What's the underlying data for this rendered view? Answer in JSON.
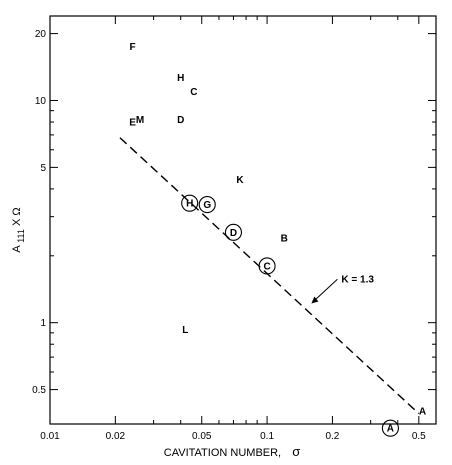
{
  "chart_data": {
    "type": "scatter",
    "x_scale": "log",
    "y_scale": "log",
    "xlim": [
      0.01,
      0.6
    ],
    "ylim": [
      0.35,
      24
    ],
    "xlabel": "CAVITATION   NUMBER,",
    "xlabel_symbol": "σ",
    "ylabel_main": "A",
    "ylabel_sub": "111",
    "ylabel_rest": " X Ω",
    "x_ticks": [
      {
        "value": 0.01,
        "label": "0.01"
      },
      {
        "value": 0.02,
        "label": "0.02"
      },
      {
        "value": 0.05,
        "label": "0.05"
      },
      {
        "value": 0.1,
        "label": "0.1"
      },
      {
        "value": 0.2,
        "label": "0.2"
      },
      {
        "value": 0.5,
        "label": "0.5"
      }
    ],
    "x_minor_ticks": [
      0.03,
      0.04,
      0.06,
      0.07,
      0.08,
      0.09,
      0.3,
      0.4
    ],
    "y_ticks": [
      {
        "value": 0.5,
        "label": "0.5"
      },
      {
        "value": 1,
        "label": "1"
      },
      {
        "value": 5,
        "label": "5"
      },
      {
        "value": 10,
        "label": "10"
      },
      {
        "value": 20,
        "label": "20"
      }
    ],
    "y_minor_ticks": [
      0.6,
      0.7,
      0.8,
      0.9,
      2,
      3,
      4,
      6,
      7,
      8,
      9
    ],
    "points": [
      {
        "label": "F",
        "x": 0.024,
        "y": 17.5,
        "circled": false
      },
      {
        "label": "H",
        "x": 0.04,
        "y": 12.7,
        "circled": false
      },
      {
        "label": "C",
        "x": 0.046,
        "y": 11.0,
        "circled": false
      },
      {
        "label": "E",
        "x": 0.024,
        "y": 8.0,
        "circled": false
      },
      {
        "label": "M",
        "x": 0.026,
        "y": 8.2,
        "circled": false
      },
      {
        "label": "D",
        "x": 0.04,
        "y": 8.2,
        "circled": false
      },
      {
        "label": "K",
        "x": 0.075,
        "y": 4.4,
        "circled": false
      },
      {
        "label": "H",
        "x": 0.044,
        "y": 3.45,
        "circled": true
      },
      {
        "label": "G",
        "x": 0.053,
        "y": 3.4,
        "circled": true
      },
      {
        "label": "D",
        "x": 0.07,
        "y": 2.55,
        "circled": true
      },
      {
        "label": "B",
        "x": 0.12,
        "y": 2.4,
        "circled": false
      },
      {
        "label": "C",
        "x": 0.1,
        "y": 1.8,
        "circled": true
      },
      {
        "label": "L",
        "x": 0.042,
        "y": 0.93,
        "circled": false
      },
      {
        "label": "A",
        "x": 0.37,
        "y": 0.335,
        "circled": true
      },
      {
        "label": "A",
        "x": 0.52,
        "y": 0.4,
        "circled": false
      }
    ],
    "fit_line": {
      "label": "K = 1.3",
      "points": [
        [
          0.021,
          6.8
        ],
        [
          0.5,
          0.39
        ]
      ],
      "style": "dashed",
      "annotation_anchor": [
        0.16,
        1.22
      ],
      "annotation_text_at": [
        0.22,
        1.52
      ]
    }
  }
}
